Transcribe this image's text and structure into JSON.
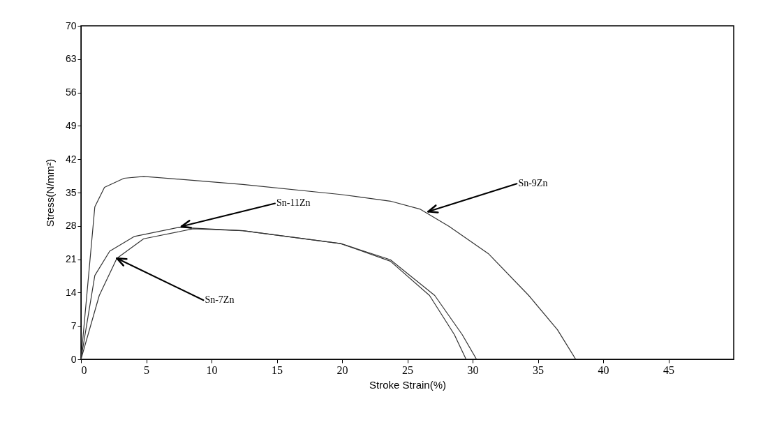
{
  "chart_data": {
    "type": "line",
    "xlabel": "Stroke Strain(%)",
    "ylabel": "Stress(N/mm²)",
    "xlim": [
      0,
      50
    ],
    "ylim": [
      0,
      70
    ],
    "xticks": [
      0,
      5,
      10,
      15,
      20,
      25,
      30,
      35,
      40,
      45
    ],
    "yticks": [
      0,
      7,
      14,
      21,
      28,
      35,
      42,
      49,
      56,
      63,
      70
    ],
    "grid": false,
    "legend": false,
    "marker": "none",
    "line_style": "solid",
    "series": [
      {
        "color": "#333333",
        "x": [
          0,
          1.06,
          1.8,
          3.3,
          4.8,
          12.4,
          19.9,
          23.7,
          26,
          28.2,
          31.2,
          34.3,
          36.5,
          37.9
        ],
        "values": [
          0,
          32,
          36.1,
          38,
          38.4,
          36.7,
          34.6,
          33.2,
          31.5,
          27.9,
          22.2,
          13.4,
          6.2,
          0
        ]
      },
      {
        "color": "#333333",
        "x": [
          0,
          1.06,
          2.2,
          4.1,
          7.5,
          12.4,
          19.9,
          23.7,
          26.7,
          28.6,
          29.5
        ],
        "values": [
          0,
          17.6,
          22.7,
          25.8,
          27.7,
          27,
          24.3,
          20.6,
          13.4,
          5.2,
          0
        ]
      },
      {
        "color": "#333333",
        "x": [
          0,
          1.4,
          2.75,
          4.8,
          8.6,
          12.4,
          19.9,
          23.7,
          27.1,
          29.2,
          30.3
        ],
        "values": [
          0,
          13.4,
          21.2,
          25.3,
          27.4,
          27,
          24.3,
          20.9,
          13.4,
          5.2,
          0
        ]
      }
    ],
    "annotations": [
      {
        "text": "Sn-9Zn",
        "x": 26.6,
        "y": 31
      },
      {
        "text": "Sn-11Zn",
        "x": 7.7,
        "y": 27.9
      },
      {
        "text": "Sn-7Zn",
        "x": 2.75,
        "y": 21.2
      }
    ]
  }
}
